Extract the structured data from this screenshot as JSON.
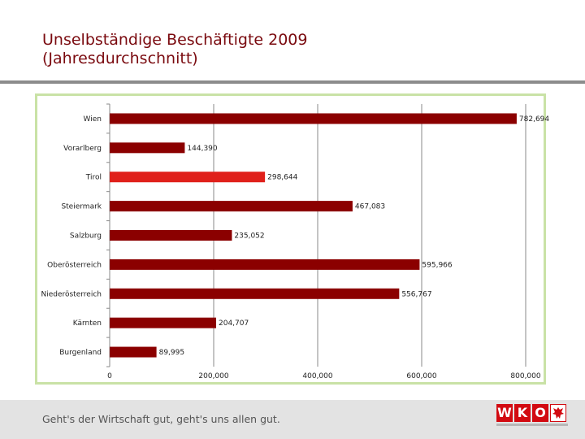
{
  "title": {
    "line1": "Unselbständige Beschäftigte 2009",
    "line2": "(Jahresdurchschnitt)"
  },
  "footer": {
    "slogan": "Geht's der Wirtschaft gut, geht's uns allen gut.",
    "logo_text": [
      "W",
      "K",
      "O"
    ],
    "logo_icon": "eagle-crest-icon"
  },
  "colors": {
    "title": "#7a0a0f",
    "bar": "#8b0000",
    "bar_highlight": "#e0201a",
    "frame": "#c9e2a6",
    "footer_band": "#e3e3e3",
    "logo_red": "#d20a11"
  },
  "chart_data": {
    "type": "bar",
    "orientation": "horizontal",
    "categories": [
      "Wien",
      "Vorarlberg",
      "Tirol",
      "Steiermark",
      "Salzburg",
      "Oberösterreich",
      "Niederösterreich",
      "Kärnten",
      "Burgenland"
    ],
    "values": [
      782694,
      144390,
      298644,
      467083,
      235052,
      595966,
      556767,
      204707,
      89995
    ],
    "data_labels": [
      "782,694",
      "144,390",
      "298,644",
      "467,083",
      "235,052",
      "595,966",
      "556,767",
      "204,707",
      "89,995"
    ],
    "highlight": "Tirol",
    "xlim": [
      0,
      800000
    ],
    "xticks": [
      0,
      200000,
      400000,
      600000,
      800000
    ],
    "xtick_labels": [
      "0",
      "200,000",
      "400,000",
      "600,000",
      "800,000"
    ],
    "grid": true,
    "legend": "none",
    "title": "",
    "xlabel": "",
    "ylabel": ""
  }
}
